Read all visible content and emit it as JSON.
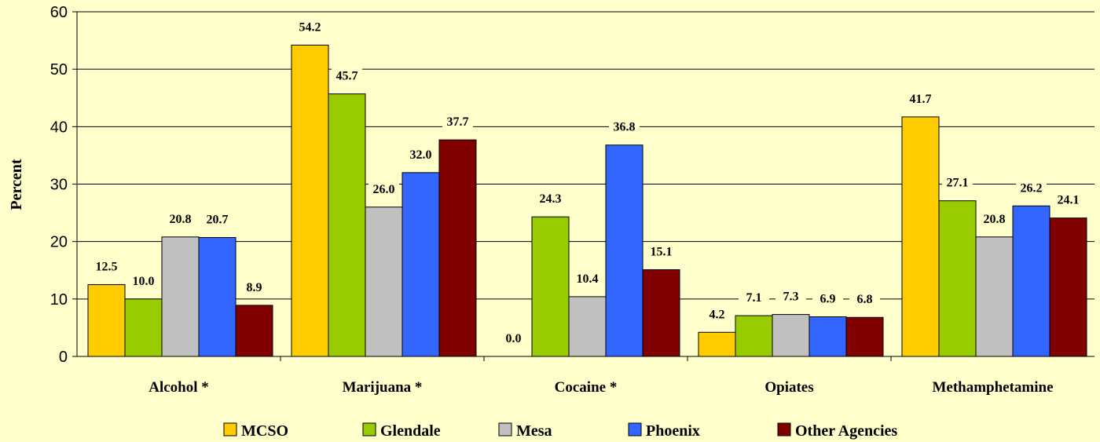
{
  "chart_data": {
    "type": "bar",
    "ylabel": "Percent",
    "ylim": [
      0,
      60
    ],
    "yticks": [
      0,
      10,
      20,
      30,
      40,
      50,
      60
    ],
    "grid": true,
    "legend_position": "bottom",
    "categories": [
      "Alcohol *",
      "Marijuana *",
      "Cocaine *",
      "Opiates",
      "Methamphetamine"
    ],
    "series": [
      {
        "name": "MCSO",
        "color": "#FFCC00",
        "values": [
          12.5,
          54.2,
          0.0,
          4.2,
          41.7
        ]
      },
      {
        "name": "Glendale",
        "color": "#99CC00",
        "values": [
          10.0,
          45.7,
          24.3,
          7.1,
          27.1
        ]
      },
      {
        "name": "Mesa",
        "color": "#C0C0C0",
        "values": [
          20.8,
          26.0,
          10.4,
          7.3,
          20.8
        ]
      },
      {
        "name": "Phoenix",
        "color": "#3366FF",
        "values": [
          20.7,
          32.0,
          36.8,
          6.9,
          26.2
        ]
      },
      {
        "name": "Other Agencies",
        "color": "#800000",
        "values": [
          8.9,
          37.7,
          15.1,
          6.8,
          24.1
        ]
      }
    ],
    "value_labels": [
      [
        "12.5",
        "54.2",
        "0.0",
        "4.2",
        "41.7"
      ],
      [
        "10.0",
        "45.7",
        "24.3",
        "7.1",
        "27.1"
      ],
      [
        "20.8",
        "26.0",
        "10.4",
        "7.3",
        "20.8"
      ],
      [
        "20.7",
        "32.0",
        "36.8",
        "6.9",
        "26.2"
      ],
      [
        "8.9",
        "37.7",
        "15.1",
        "6.8",
        "24.1"
      ]
    ]
  }
}
